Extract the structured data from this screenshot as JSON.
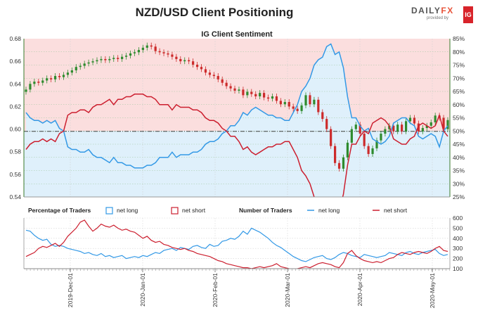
{
  "title": "NZD/USD Client Positioning",
  "logo": {
    "brand_main": "DAILY",
    "brand_fx": "FX",
    "sub": "provided by",
    "ig": "IG"
  },
  "colors": {
    "long": "#3399e6",
    "short": "#cc1f2f",
    "bull": "#2e8b2e",
    "bear": "#cc2b2b",
    "long_fill": "#dff0fb",
    "short_fill": "#fbdede",
    "axis_green": "#3a7a2a"
  },
  "chart_data": [
    {
      "type": "candlestick+line",
      "title": "IG Client Sentiment",
      "ylim_left": [
        0.54,
        0.68
      ],
      "yticks_left": [
        "0.68",
        "0.66",
        "0.64",
        "0.62",
        "0.60",
        "0.58",
        "0.56",
        "0.54"
      ],
      "ylim_right": [
        25,
        85
      ],
      "yticks_right": [
        "85%",
        "80%",
        "75%",
        "70%",
        "65%",
        "60%",
        "55%",
        "50%",
        "45%",
        "40%",
        "35%",
        "30%",
        "25%"
      ],
      "reference_levels": {
        "price": 0.598,
        "percent_50": 50
      },
      "price_close": [
        0.635,
        0.64,
        0.642,
        0.641,
        0.643,
        0.645,
        0.644,
        0.647,
        0.646,
        0.648,
        0.65,
        0.652,
        0.655,
        0.656,
        0.658,
        0.659,
        0.66,
        0.661,
        0.662,
        0.661,
        0.662,
        0.663,
        0.662,
        0.664,
        0.665,
        0.667,
        0.668,
        0.67,
        0.672,
        0.674,
        0.673,
        0.669,
        0.668,
        0.667,
        0.666,
        0.664,
        0.662,
        0.66,
        0.661,
        0.66,
        0.657,
        0.655,
        0.653,
        0.65,
        0.648,
        0.647,
        0.644,
        0.641,
        0.638,
        0.636,
        0.634,
        0.635,
        0.63,
        0.633,
        0.631,
        0.629,
        0.632,
        0.628,
        0.627,
        0.629,
        0.625,
        0.622,
        0.624,
        0.62,
        0.618,
        0.616,
        0.621,
        0.63,
        0.622,
        0.626,
        0.615,
        0.609,
        0.6,
        0.585,
        0.57,
        0.565,
        0.575,
        0.588,
        0.6,
        0.604,
        0.596,
        0.585,
        0.578,
        0.583,
        0.59,
        0.596,
        0.6,
        0.603,
        0.598,
        0.604,
        0.598,
        0.607,
        0.61,
        0.605,
        0.598,
        0.601,
        0.603,
        0.606,
        0.612,
        0.61,
        0.6,
        0.608
      ],
      "net_long_pct": [
        57,
        55,
        54,
        54,
        53,
        54,
        53,
        54,
        51,
        50,
        44,
        43,
        43,
        42,
        42,
        43,
        41,
        40,
        40,
        39,
        38,
        40,
        38,
        38,
        37,
        37,
        36,
        36,
        36,
        37,
        37,
        38,
        40,
        40,
        40,
        42,
        40,
        41,
        41,
        41,
        42,
        42,
        43,
        45,
        46,
        46,
        47,
        49,
        50,
        52,
        52,
        54,
        57,
        56,
        58,
        59,
        58,
        57,
        56,
        56,
        55,
        55,
        54,
        54,
        57,
        60,
        65,
        67,
        70,
        75,
        77,
        78,
        82,
        83,
        79,
        80,
        74,
        63,
        55,
        55,
        52,
        50,
        51,
        47,
        46,
        45,
        46,
        48,
        53,
        54,
        55,
        55,
        53,
        52,
        48,
        47,
        48,
        49,
        48,
        44,
        50,
        52
      ],
      "net_short_pct": [
        43,
        45,
        46,
        46,
        47,
        46,
        47,
        46,
        49,
        50,
        56,
        57,
        57,
        58,
        58,
        57,
        59,
        60,
        60,
        61,
        62,
        60,
        62,
        62,
        63,
        63,
        64,
        64,
        64,
        63,
        63,
        62,
        60,
        60,
        60,
        58,
        60,
        59,
        59,
        59,
        58,
        58,
        57,
        55,
        54,
        54,
        53,
        51,
        50,
        48,
        48,
        46,
        43,
        44,
        42,
        41,
        42,
        43,
        44,
        44,
        45,
        45,
        46,
        46,
        43,
        40,
        35,
        33,
        30,
        25,
        23,
        22,
        18,
        17,
        21,
        20,
        26,
        37,
        45,
        45,
        48,
        50,
        49,
        53,
        54,
        55,
        54,
        52,
        47,
        46,
        45,
        45,
        47,
        48,
        52,
        53,
        52,
        51,
        52,
        56,
        50,
        48
      ]
    },
    {
      "type": "line",
      "legend": [
        {
          "label": "Percentage of Traders",
          "style": "heading"
        },
        {
          "label": "net long",
          "style": "box",
          "color": "#3399e6"
        },
        {
          "label": "net short",
          "style": "box",
          "color": "#cc1f2f"
        },
        {
          "label": "Number of Traders",
          "style": "heading"
        },
        {
          "label": "net long",
          "style": "line",
          "color": "#3399e6"
        },
        {
          "label": "net short",
          "style": "line",
          "color": "#cc1f2f"
        }
      ],
      "ylim_right": [
        100,
        600
      ],
      "yticks_right": [
        "600",
        "500",
        "400",
        "300",
        "200",
        "100"
      ],
      "xtick_labels": [
        "2019-Dec-01",
        "2020-Jan-01",
        "2020-Feb-01",
        "2020-Mar-01",
        "2020-Apr-01",
        "2020-May-01"
      ],
      "traders_long": [
        480,
        470,
        430,
        400,
        380,
        390,
        340,
        320,
        330,
        320,
        300,
        290,
        280,
        270,
        250,
        260,
        240,
        230,
        250,
        220,
        230,
        210,
        220,
        230,
        200,
        210,
        220,
        210,
        230,
        220,
        240,
        260,
        250,
        280,
        290,
        300,
        280,
        310,
        300,
        290,
        320,
        330,
        310,
        300,
        340,
        320,
        330,
        370,
        380,
        400,
        390,
        420,
        470,
        440,
        500,
        480,
        460,
        430,
        400,
        360,
        330,
        310,
        280,
        250,
        220,
        200,
        180,
        170,
        190,
        210,
        220,
        230,
        200,
        190,
        210,
        240,
        260,
        250,
        230,
        220,
        210,
        240,
        230,
        220,
        210,
        220,
        230,
        260,
        250,
        240,
        230,
        260,
        270,
        250,
        240,
        260,
        270,
        280,
        290,
        250,
        230,
        240
      ],
      "traders_short": [
        220,
        240,
        260,
        300,
        320,
        310,
        330,
        350,
        320,
        360,
        420,
        460,
        500,
        560,
        580,
        520,
        470,
        500,
        540,
        520,
        510,
        530,
        500,
        480,
        490,
        470,
        460,
        430,
        400,
        420,
        380,
        360,
        370,
        340,
        330,
        310,
        300,
        290,
        300,
        280,
        270,
        250,
        240,
        230,
        220,
        200,
        180,
        170,
        150,
        140,
        130,
        120,
        110,
        110,
        100,
        110,
        120,
        110,
        120,
        130,
        150,
        120,
        110,
        100,
        90,
        100,
        110,
        120,
        110,
        130,
        150,
        160,
        150,
        140,
        120,
        110,
        160,
        250,
        280,
        230,
        200,
        180,
        170,
        160,
        170,
        160,
        180,
        200,
        210,
        240,
        260,
        250,
        240,
        260,
        270,
        260,
        250,
        270,
        300,
        320,
        280,
        270
      ]
    }
  ]
}
